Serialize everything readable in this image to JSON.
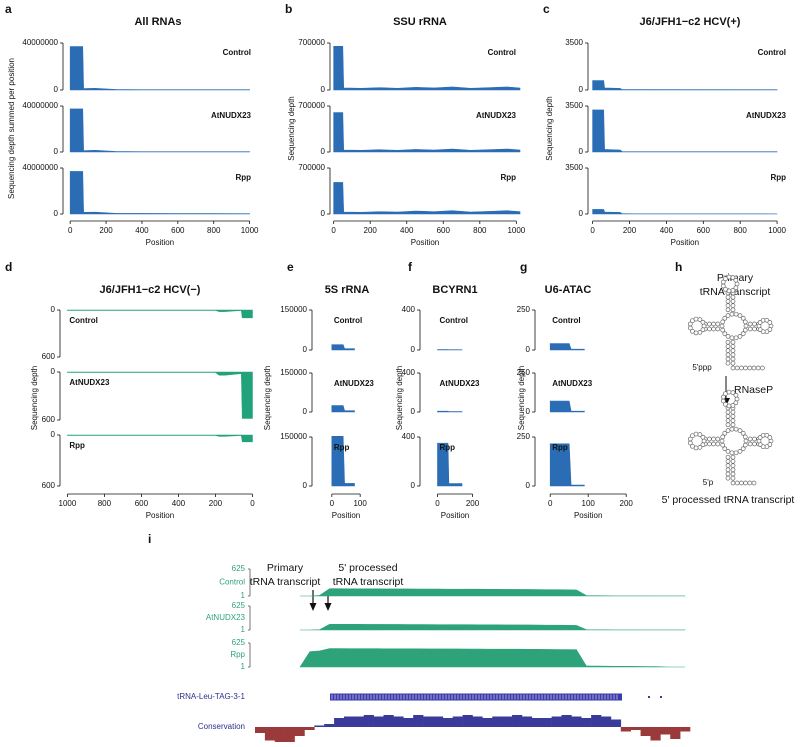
{
  "chart_data": [
    {
      "type": "area",
      "panel": "a",
      "title": "All RNAs",
      "xlabel": "Position",
      "ylabel": "Sequencing depth summed per position",
      "xlim": [
        -40,
        1030
      ],
      "xticks": [
        0,
        200,
        400,
        600,
        800,
        1000
      ],
      "ylim": [
        0,
        40000000
      ],
      "yticks": [
        0,
        40000000
      ],
      "x": [
        0,
        70,
        75,
        140,
        200,
        260,
        400,
        600,
        800,
        1000
      ],
      "series": [
        {
          "name": "Control",
          "color": "#2a6db5",
          "values": [
            37000000,
            37000000,
            1200000,
            1400000,
            900000,
            400000,
            300000,
            300000,
            250000,
            250000
          ]
        },
        {
          "name": "AtNUDX23",
          "color": "#2a6db5",
          "values": [
            37500000,
            37500000,
            1200000,
            1500000,
            900000,
            400000,
            300000,
            300000,
            250000,
            250000
          ]
        },
        {
          "name": "Rpp",
          "color": "#2a6db5",
          "values": [
            37000000,
            37000000,
            1500000,
            1600000,
            1000000,
            500000,
            500000,
            400000,
            350000,
            300000
          ]
        }
      ]
    },
    {
      "type": "area",
      "panel": "b",
      "title": "SSU rRNA",
      "xlabel": "Position",
      "ylabel": "Sequencing depth",
      "xlim": [
        -20,
        1020
      ],
      "xticks": [
        0,
        200,
        400,
        600,
        800,
        1000
      ],
      "ylim": [
        0,
        700000
      ],
      "yticks": [
        0,
        700000
      ],
      "x": [
        0,
        50,
        55,
        150,
        250,
        350,
        450,
        550,
        650,
        750,
        850,
        950,
        1020
      ],
      "series": [
        {
          "name": "Control",
          "color": "#2a6db5",
          "values": [
            650000,
            650000,
            30000,
            25000,
            35000,
            25000,
            40000,
            30000,
            45000,
            25000,
            35000,
            45000,
            30000
          ]
        },
        {
          "name": "AtNUDX23",
          "color": "#2a6db5",
          "values": [
            600000,
            600000,
            30000,
            25000,
            35000,
            25000,
            40000,
            30000,
            45000,
            25000,
            35000,
            45000,
            30000
          ]
        },
        {
          "name": "Rpp",
          "color": "#2a6db5",
          "values": [
            480000,
            480000,
            30000,
            25000,
            35000,
            30000,
            45000,
            35000,
            50000,
            30000,
            40000,
            50000,
            35000
          ]
        }
      ]
    },
    {
      "type": "area",
      "panel": "c",
      "title": "J6/JFH1−c2 HCV(+)",
      "xlabel": "Position",
      "ylabel": "Sequencing depth",
      "xlim": [
        -25,
        1070
      ],
      "xticks": [
        0,
        200,
        400,
        600,
        800,
        1000
      ],
      "ylim": [
        0,
        3500
      ],
      "yticks": [
        0,
        3500
      ],
      "x": [
        0,
        60,
        65,
        150,
        160,
        1000
      ],
      "series": [
        {
          "name": "Control",
          "color": "#2a6db5",
          "values": [
            700,
            700,
            150,
            120,
            30,
            20
          ]
        },
        {
          "name": "AtNUDX23",
          "color": "#2a6db5",
          "values": [
            3200,
            3200,
            200,
            150,
            30,
            20
          ]
        },
        {
          "name": "Rpp",
          "color": "#2a6db5",
          "values": [
            350,
            350,
            150,
            120,
            20,
            10
          ]
        }
      ]
    },
    {
      "type": "area",
      "panel": "d",
      "title": "J6/JFH1−c2 HCV(−)",
      "xlabel": "Position",
      "ylabel": "Sequencing depth",
      "xlim": [
        1040,
        -30
      ],
      "xticks": [
        1000,
        800,
        600,
        400,
        200,
        0
      ],
      "ylim": [
        0,
        600
      ],
      "yticks": [
        0,
        600
      ],
      "y_inverted": true,
      "x": [
        1000,
        200,
        180,
        150,
        60,
        55,
        0
      ],
      "series": [
        {
          "name": "Control",
          "color": "#22a27a",
          "values": [
            5,
            5,
            20,
            20,
            5,
            100,
            100
          ]
        },
        {
          "name": "AtNUDX23",
          "color": "#22a27a",
          "values": [
            5,
            5,
            40,
            40,
            20,
            580,
            580
          ]
        },
        {
          "name": "Rpp",
          "color": "#22a27a",
          "values": [
            5,
            5,
            15,
            15,
            5,
            80,
            80
          ]
        }
      ]
    },
    {
      "type": "area",
      "panel": "e",
      "title": "5S rRNA",
      "xlabel": "Position",
      "ylabel": "Sequencing depth",
      "xlim": [
        -70,
        170
      ],
      "xticks": [
        0,
        100
      ],
      "ylim": [
        0,
        150000
      ],
      "yticks": [
        0,
        150000
      ],
      "x": [
        0,
        40,
        45,
        80
      ],
      "series": [
        {
          "name": "Control",
          "color": "#2a6db5",
          "values": [
            20000,
            20000,
            5000,
            5000
          ]
        },
        {
          "name": "AtNUDX23",
          "color": "#2a6db5",
          "values": [
            25000,
            25000,
            5000,
            5000
          ]
        },
        {
          "name": "Rpp",
          "color": "#2a6db5",
          "values": [
            152000,
            152000,
            8000,
            8000
          ]
        }
      ]
    },
    {
      "type": "area",
      "panel": "f",
      "title": "BCYRN1",
      "xlabel": "Position",
      "ylabel": "Sequencing depth",
      "xlim": [
        -100,
        300
      ],
      "xticks": [
        0,
        200
      ],
      "ylim": [
        0,
        400
      ],
      "yticks": [
        0,
        400
      ],
      "x": [
        0,
        60,
        65,
        140
      ],
      "series": [
        {
          "name": "Control",
          "color": "#2a6db5",
          "values": [
            5,
            5,
            3,
            3
          ]
        },
        {
          "name": "AtNUDX23",
          "color": "#2a6db5",
          "values": [
            8,
            8,
            4,
            4
          ]
        },
        {
          "name": "Rpp",
          "color": "#2a6db5",
          "values": [
            350,
            350,
            20,
            20
          ]
        }
      ]
    },
    {
      "type": "area",
      "panel": "g",
      "title": "U6-ATAC",
      "xlabel": "Position",
      "ylabel": "Sequencing depth",
      "xlim": [
        -40,
        210
      ],
      "xticks": [
        0,
        100,
        200
      ],
      "ylim": [
        0,
        250
      ],
      "yticks": [
        0,
        250
      ],
      "x": [
        0,
        50,
        55,
        90
      ],
      "series": [
        {
          "name": "Control",
          "color": "#2a6db5",
          "values": [
            40,
            40,
            5,
            5
          ]
        },
        {
          "name": "AtNUDX23",
          "color": "#2a6db5",
          "values": [
            70,
            70,
            5,
            5
          ]
        },
        {
          "name": "Rpp",
          "color": "#2a6db5",
          "values": [
            215,
            215,
            5,
            5
          ]
        }
      ]
    },
    {
      "type": "genome-browser",
      "panel": "i",
      "primary_label": [
        "Primary",
        "tRNA transcript"
      ],
      "processed_label": [
        "5' processed",
        "tRNA transcript"
      ],
      "ylim": [
        1,
        625
      ],
      "yticks": [
        625,
        1
      ],
      "series": [
        {
          "name": "Control",
          "color": "#2ea37a",
          "values": [
            1,
            1,
            15,
            170,
            170,
            168,
            168,
            166,
            166,
            165,
            165,
            164,
            163,
            162,
            162,
            160,
            160,
            158,
            158,
            156,
            155,
            154,
            153,
            152,
            150,
            148,
            146,
            144,
            140,
            12,
            8,
            6,
            4,
            3,
            3,
            3,
            2,
            2,
            2,
            2
          ]
        },
        {
          "name": "AtNUDX23",
          "color": "#2ea37a",
          "values": [
            1,
            1,
            10,
            150,
            150,
            148,
            148,
            147,
            146,
            145,
            145,
            144,
            143,
            142,
            141,
            140,
            140,
            138,
            137,
            136,
            135,
            134,
            133,
            132,
            130,
            128,
            126,
            124,
            120,
            10,
            6,
            5,
            4,
            3,
            3,
            2,
            2,
            2,
            2,
            2
          ]
        },
        {
          "name": "Rpp",
          "color": "#2ea37a",
          "values": [
            1,
            400,
            420,
            480,
            480,
            478,
            478,
            477,
            476,
            475,
            475,
            474,
            473,
            472,
            471,
            470,
            470,
            468,
            467,
            466,
            465,
            464,
            463,
            462,
            460,
            458,
            456,
            454,
            450,
            30,
            25,
            22,
            20,
            18,
            16,
            14,
            12,
            3,
            1,
            1
          ]
        }
      ],
      "gene": "tRNA-Leu-TAG-3-1",
      "conservation": {
        "name": "Conservation",
        "positive_color": "#3a3a9a",
        "negative_color": "#9b3a3a",
        "values": [
          -0.4,
          -0.9,
          -1.0,
          -1.0,
          -0.6,
          -0.2,
          0.1,
          0.2,
          0.6,
          0.7,
          0.7,
          0.8,
          0.7,
          0.8,
          0.7,
          0.6,
          0.8,
          0.7,
          0.7,
          0.6,
          0.7,
          0.8,
          0.7,
          0.6,
          0.7,
          0.7,
          0.8,
          0.7,
          0.6,
          0.6,
          0.7,
          0.8,
          0.7,
          0.6,
          0.8,
          0.7,
          0.5,
          -0.3,
          -0.2,
          -0.6,
          -0.9,
          -0.5,
          -0.8,
          -0.3
        ]
      }
    }
  ],
  "diagram": {
    "panel": "h",
    "top_label": [
      "Primary",
      "tRNA transcript"
    ],
    "enzyme": "RNaseP",
    "bottom_label": "5' processed tRNA transcript",
    "prefix_primary": "5'ppp",
    "prefix_processed": "5'p"
  }
}
